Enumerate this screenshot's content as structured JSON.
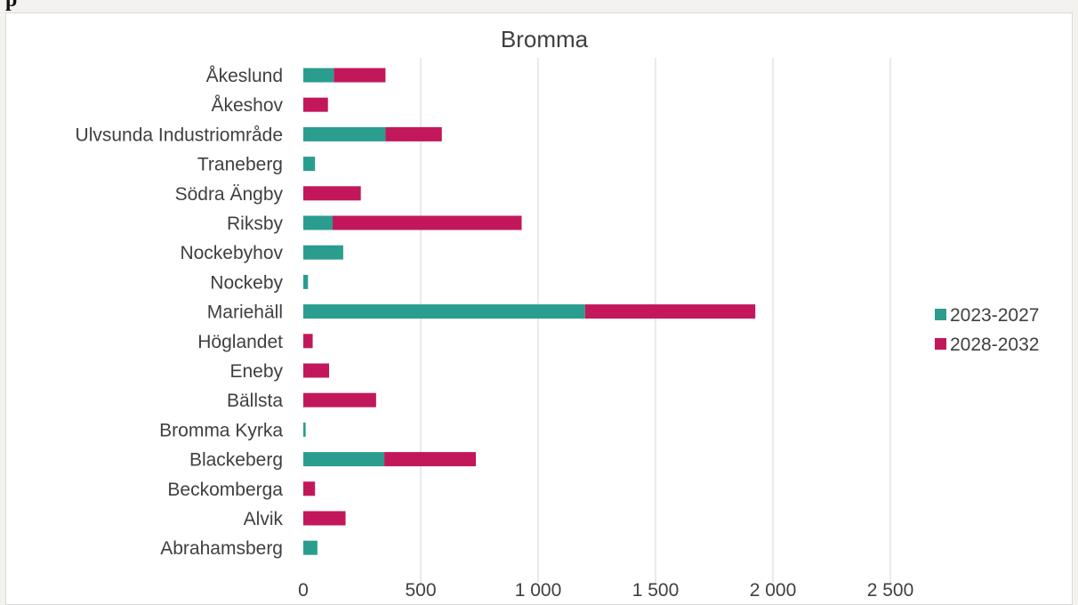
{
  "header": {
    "text": "p"
  },
  "chart_data": {
    "type": "bar",
    "orientation": "horizontal",
    "stacked": true,
    "title": "Bromma",
    "xlabel": "",
    "ylabel": "",
    "xlim": [
      0,
      2500
    ],
    "xticks": [
      0,
      500,
      1000,
      1500,
      2000,
      2500
    ],
    "xtick_labels": [
      "0",
      "500",
      "1 000",
      "1 500",
      "2 000",
      "2 500"
    ],
    "grid": "vertical",
    "legend_position": "right",
    "categories": [
      "Åkeslund",
      "Åkeshov",
      "Ulvsunda Industriområde",
      "Traneberg",
      "Södra Ängby",
      "Riksby",
      "Nockebyhov",
      "Nockeby",
      "Mariehäll",
      "Höglandet",
      "Eneby",
      "Bällsta",
      "Bromma Kyrka",
      "Blackeberg",
      "Beckomberga",
      "Alvik",
      "Abrahamsberg"
    ],
    "series": [
      {
        "name": "2023-2027",
        "color": "#2a9d8f",
        "values": [
          130,
          0,
          350,
          50,
          0,
          125,
          170,
          20,
          1200,
          0,
          0,
          0,
          10,
          345,
          0,
          0,
          60
        ]
      },
      {
        "name": "2028-2032",
        "color": "#c2185b",
        "values": [
          220,
          105,
          240,
          0,
          245,
          805,
          0,
          0,
          725,
          40,
          110,
          310,
          0,
          390,
          50,
          180,
          0
        ]
      }
    ]
  }
}
